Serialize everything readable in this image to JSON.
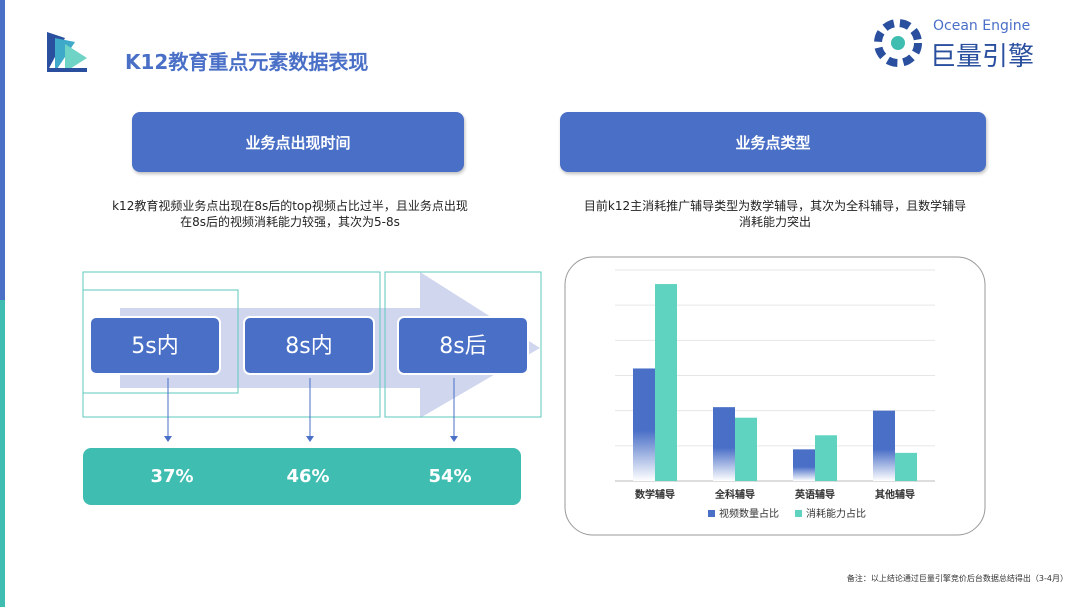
{
  "header": {
    "title": "K12教育重点元素数据表现",
    "logo_en": "Ocean Engine",
    "logo_cn": "巨量引擎"
  },
  "left": {
    "heading": "业务点出现时间",
    "description": [
      "k12教育视频业务点出现在8s后的top视频占比过半，且业务点出现",
      "在8s后的视频消耗能力较强，其次为5-8s"
    ],
    "stages": [
      {
        "label": "5s内",
        "share": "37%"
      },
      {
        "label": "8s内",
        "share": "46%"
      },
      {
        "label": "8s后",
        "share": "54%"
      }
    ]
  },
  "right": {
    "heading": "业务点类型",
    "description": [
      "目前k12主消耗推广辅导类型为数学辅导，其次为全科辅导，且数学辅导",
      "消耗能力突出"
    ]
  },
  "chart_data": {
    "type": "bar",
    "categories": [
      "数学辅导",
      "全科辅导",
      "英语辅导",
      "其他辅导"
    ],
    "series": [
      {
        "name": "视频数量占比",
        "color": "#4a6fc7",
        "values": [
          32,
          21,
          9,
          20
        ]
      },
      {
        "name": "消耗能力占比",
        "color": "#5fd3c0",
        "values": [
          56,
          18,
          13,
          8
        ]
      }
    ],
    "ylim": [
      0,
      60
    ],
    "yticks": [
      0,
      10,
      20,
      30,
      40,
      50,
      60
    ],
    "grid": true,
    "legend": "bottom"
  },
  "footer": {
    "note": "备注：以上结论通过巨量引擎竞价后台数据总结得出（3-4月）"
  }
}
